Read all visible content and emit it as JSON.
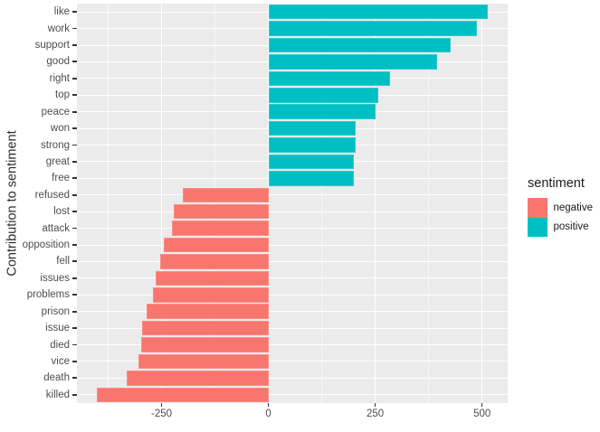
{
  "chart_data": {
    "type": "bar",
    "orientation": "horizontal",
    "title": "",
    "ylabel": "Contribution to sentiment",
    "xlabel": "",
    "xlim": [
      -448,
      560
    ],
    "x_ticks": [
      -250,
      0,
      250,
      500
    ],
    "x_tick_labels": [
      "-250",
      "0",
      "250",
      "500"
    ],
    "x_minor_gridlines": [
      -375,
      -125,
      125,
      375
    ],
    "grid": true,
    "panel_background": "#EBEBEB",
    "gridline_color": "#FFFFFF",
    "categories": [
      "like",
      "work",
      "support",
      "good",
      "right",
      "top",
      "peace",
      "won",
      "strong",
      "great",
      "free",
      "refused",
      "lost",
      "attack",
      "opposition",
      "fell",
      "issues",
      "problems",
      "prison",
      "issue",
      "died",
      "vice",
      "death",
      "killed"
    ],
    "values": [
      513,
      487,
      426,
      395,
      284,
      258,
      251,
      205,
      204,
      201,
      200,
      -200,
      -222,
      -226,
      -245,
      -254,
      -263,
      -270,
      -284,
      -296,
      -297,
      -303,
      -331,
      -402
    ],
    "sentiments": [
      "positive",
      "positive",
      "positive",
      "positive",
      "positive",
      "positive",
      "positive",
      "positive",
      "positive",
      "positive",
      "positive",
      "negative",
      "negative",
      "negative",
      "negative",
      "negative",
      "negative",
      "negative",
      "negative",
      "negative",
      "negative",
      "negative",
      "negative",
      "negative"
    ],
    "colors": {
      "negative": "#F8766D",
      "positive": "#00BFC4"
    },
    "legend": {
      "title": "sentiment",
      "position": "right",
      "entries": [
        {
          "label": "negative",
          "color": "#F8766D"
        },
        {
          "label": "positive",
          "color": "#00BFC4"
        }
      ]
    }
  }
}
